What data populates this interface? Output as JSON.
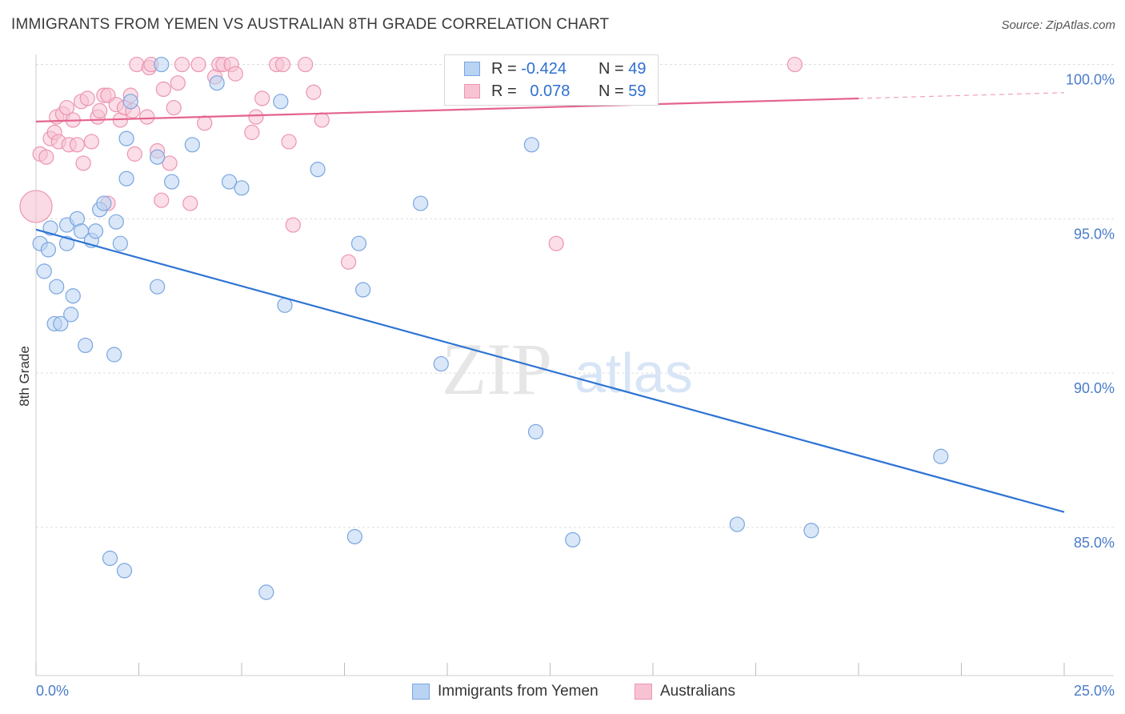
{
  "title": "IMMIGRANTS FROM YEMEN VS AUSTRALIAN 8TH GRADE CORRELATION CHART",
  "source": "Source: ZipAtlas.com",
  "watermark": {
    "zip": "ZIP",
    "atlas": "atlas"
  },
  "legend": {
    "rows": [
      {
        "r_label": "R =",
        "r_value": "-0.424",
        "n_label": "N =",
        "n_value": "49"
      },
      {
        "r_label": "R =",
        "r_value": "0.078",
        "n_label": "N =",
        "n_value": "59"
      }
    ]
  },
  "bottom_legend": [
    "Immigrants from Yemen",
    "Australians"
  ],
  "colors": {
    "blue_fill": "#b9d3f3",
    "blue_stroke": "#7aa6e0",
    "blue_line": "#2e74d4",
    "pink_fill": "#f7c3d3",
    "pink_stroke": "#ec95b1",
    "pink_line": "#e4638c",
    "tick_text": "#4a7cc8",
    "grid": "#dddddd"
  },
  "chart_data": {
    "type": "scatter",
    "title": "IMMIGRANTS FROM YEMEN VS AUSTRALIAN 8TH GRADE CORRELATION CHART",
    "xlabel": "",
    "ylabel": "8th Grade",
    "xlim": [
      0,
      25
    ],
    "ylim": [
      80.2,
      101.0
    ],
    "x_ticks": [
      "0.0%",
      "25.0%"
    ],
    "y_ticks": [
      {
        "value": 100,
        "label": "100.0%"
      },
      {
        "value": 95,
        "label": "95.0%"
      },
      {
        "value": 90,
        "label": "90.0%"
      },
      {
        "value": 85,
        "label": "85.0%"
      }
    ],
    "grid": true,
    "legend_position": "top-center",
    "series": [
      {
        "name": "Immigrants from Yemen",
        "color": "#7aa6e0",
        "trend": {
          "x": [
            0,
            25
          ],
          "y": [
            94.65,
            85.5
          ]
        },
        "points": [
          [
            0.1,
            94.2
          ],
          [
            0.2,
            93.3
          ],
          [
            0.3,
            94.0
          ],
          [
            0.35,
            94.7
          ],
          [
            0.45,
            91.6
          ],
          [
            0.5,
            92.8
          ],
          [
            0.6,
            91.6
          ],
          [
            0.75,
            94.2
          ],
          [
            0.75,
            94.8
          ],
          [
            0.85,
            91.9
          ],
          [
            0.9,
            92.5
          ],
          [
            1.0,
            95.0
          ],
          [
            1.1,
            94.6
          ],
          [
            1.2,
            90.9
          ],
          [
            1.35,
            94.3
          ],
          [
            1.45,
            94.6
          ],
          [
            1.55,
            95.3
          ],
          [
            1.65,
            95.5
          ],
          [
            1.8,
            84.0
          ],
          [
            1.9,
            90.6
          ],
          [
            1.95,
            94.9
          ],
          [
            2.05,
            94.2
          ],
          [
            2.15,
            83.6
          ],
          [
            2.2,
            96.3
          ],
          [
            2.3,
            98.8
          ],
          [
            2.2,
            97.6
          ],
          [
            2.95,
            97.0
          ],
          [
            2.95,
            92.8
          ],
          [
            3.05,
            100.0
          ],
          [
            3.3,
            96.2
          ],
          [
            3.8,
            97.4
          ],
          [
            4.4,
            99.4
          ],
          [
            4.7,
            96.2
          ],
          [
            5.0,
            96.0
          ],
          [
            5.6,
            82.9
          ],
          [
            5.95,
            98.8
          ],
          [
            6.05,
            92.2
          ],
          [
            6.85,
            96.6
          ],
          [
            7.75,
            84.7
          ],
          [
            7.85,
            94.2
          ],
          [
            7.95,
            92.7
          ],
          [
            9.35,
            95.5
          ],
          [
            9.85,
            90.3
          ],
          [
            12.05,
            97.4
          ],
          [
            12.15,
            88.1
          ],
          [
            13.05,
            84.6
          ],
          [
            17.05,
            85.1
          ],
          [
            18.85,
            84.9
          ],
          [
            22.0,
            87.3
          ]
        ]
      },
      {
        "name": "Australians",
        "color": "#ec95b1",
        "trend": {
          "x": [
            0,
            20
          ],
          "y": [
            98.15,
            98.9
          ]
        },
        "points": [
          [
            0.1,
            97.1
          ],
          [
            0.25,
            97.0
          ],
          [
            0.35,
            97.6
          ],
          [
            0.45,
            97.8
          ],
          [
            0.5,
            98.3
          ],
          [
            0.55,
            97.5
          ],
          [
            0.65,
            98.4
          ],
          [
            0.75,
            98.6
          ],
          [
            0.8,
            97.4
          ],
          [
            0.9,
            98.2
          ],
          [
            1.0,
            97.4
          ],
          [
            1.1,
            98.8
          ],
          [
            1.15,
            96.8
          ],
          [
            1.25,
            98.9
          ],
          [
            1.35,
            97.5
          ],
          [
            1.5,
            98.3
          ],
          [
            1.55,
            98.5
          ],
          [
            1.65,
            99.0
          ],
          [
            1.75,
            99.0
          ],
          [
            1.75,
            95.5
          ],
          [
            1.95,
            98.7
          ],
          [
            2.05,
            98.2
          ],
          [
            2.15,
            98.6
          ],
          [
            2.3,
            99.0
          ],
          [
            2.35,
            98.5
          ],
          [
            2.4,
            97.1
          ],
          [
            2.45,
            100.0
          ],
          [
            2.7,
            98.3
          ],
          [
            2.75,
            99.9
          ],
          [
            2.8,
            100.0
          ],
          [
            2.95,
            97.2
          ],
          [
            3.05,
            95.6
          ],
          [
            3.1,
            99.2
          ],
          [
            3.25,
            96.8
          ],
          [
            3.35,
            98.6
          ],
          [
            3.45,
            99.4
          ],
          [
            3.55,
            100.0
          ],
          [
            3.75,
            95.5
          ],
          [
            3.95,
            100.0
          ],
          [
            4.1,
            98.1
          ],
          [
            4.35,
            99.6
          ],
          [
            4.45,
            100.0
          ],
          [
            4.55,
            100.0
          ],
          [
            4.75,
            100.0
          ],
          [
            4.85,
            99.7
          ],
          [
            5.25,
            97.8
          ],
          [
            5.35,
            98.3
          ],
          [
            5.5,
            98.9
          ],
          [
            5.85,
            100.0
          ],
          [
            6.0,
            100.0
          ],
          [
            6.15,
            97.5
          ],
          [
            6.25,
            94.8
          ],
          [
            6.55,
            100.0
          ],
          [
            6.75,
            99.1
          ],
          [
            6.95,
            98.2
          ],
          [
            7.6,
            93.6
          ],
          [
            12.1,
            100.0
          ],
          [
            12.65,
            94.2
          ],
          [
            18.45,
            100.0
          ]
        ],
        "large_point": [
          0.0,
          95.4
        ]
      }
    ]
  }
}
